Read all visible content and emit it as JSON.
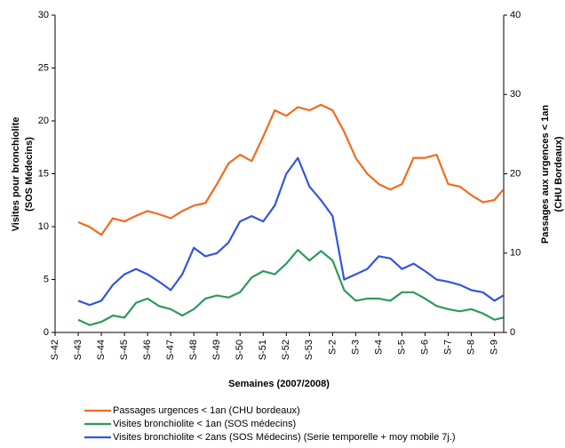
{
  "chart_data": {
    "type": "line",
    "xlabel": "Semaines (2007/2008)",
    "ylabel": [
      "Visites pour bronchiolite",
      "(SOS Médecins)"
    ],
    "y2label": [
      "Passages aux urgences < 1an",
      "(CHU Bordeaux)"
    ],
    "xlim": [
      0,
      19.4
    ],
    "xticks": [
      {
        "value": 0,
        "label": "S-42"
      },
      {
        "value": 1,
        "label": "S-43"
      },
      {
        "value": 2,
        "label": "S-44"
      },
      {
        "value": 3,
        "label": "S-45"
      },
      {
        "value": 4,
        "label": "S-46"
      },
      {
        "value": 5,
        "label": "S-47"
      },
      {
        "value": 6,
        "label": "S-48"
      },
      {
        "value": 7,
        "label": "S-49"
      },
      {
        "value": 8,
        "label": "S-50"
      },
      {
        "value": 9,
        "label": "S-51"
      },
      {
        "value": 10,
        "label": "S-52"
      },
      {
        "value": 11,
        "label": "S-53"
      },
      {
        "value": 12,
        "label": "S-2"
      },
      {
        "value": 13,
        "label": "S-3"
      },
      {
        "value": 14,
        "label": "S-4"
      },
      {
        "value": 15,
        "label": "S-5"
      },
      {
        "value": 16,
        "label": "S-6"
      },
      {
        "value": 17,
        "label": "S-7"
      },
      {
        "value": 18,
        "label": "S-8"
      },
      {
        "value": 19,
        "label": "S-9"
      }
    ],
    "ylim": [
      0,
      30
    ],
    "yticks": [
      0,
      5,
      10,
      15,
      20,
      25,
      30
    ],
    "y2lim": [
      0,
      40
    ],
    "y2ticks": [
      0,
      10,
      20,
      30,
      40
    ],
    "legend": "bottom",
    "x": [
      1,
      1.5,
      2,
      2.5,
      3,
      3.5,
      4,
      4.5,
      5,
      5.5,
      6,
      6.5,
      7,
      7.5,
      8,
      8.5,
      9,
      9.5,
      10,
      10.5,
      11,
      11.5,
      12,
      12.5,
      13,
      13.5,
      14,
      14.5,
      15,
      15.5,
      16,
      16.5,
      17,
      17.5,
      18,
      18.5,
      19,
      19.38
    ],
    "series": [
      {
        "name": "Passages urgences < 1an (CHU bordeaux)",
        "color": "#f26b1d",
        "axis": "y2",
        "values": [
          13.9,
          13.3,
          12.3,
          14.4,
          14,
          14.7,
          15.3,
          14.9,
          14.4,
          15.3,
          16,
          16.3,
          18.7,
          21.3,
          22.4,
          21.6,
          24.7,
          28,
          27.3,
          28.4,
          28,
          28.7,
          28,
          25.3,
          22,
          20,
          18.7,
          18,
          18.7,
          22,
          22,
          22.4,
          18.7,
          18.4,
          17.3,
          16.4,
          16.7,
          18
        ]
      },
      {
        "name": "Visites bronchiolite < 1an (SOS médecins)",
        "color": "#2e9a5c",
        "values": [
          1.2,
          0.7,
          1.0,
          1.6,
          1.4,
          2.8,
          3.2,
          2.5,
          2.2,
          1.6,
          2.2,
          3.2,
          3.5,
          3.3,
          3.8,
          5.2,
          5.8,
          5.5,
          6.5,
          7.8,
          6.8,
          7.7,
          6.8,
          4.0,
          3.0,
          3.2,
          3.2,
          3.0,
          3.8,
          3.8,
          3.2,
          2.5,
          2.2,
          2.0,
          2.2,
          1.8,
          1.2,
          1.4
        ]
      },
      {
        "name": "Visites bronchiolite < 2ans (SOS Médecins) (Serie temporelle + moy mobile 7j.)",
        "color": "#3355dd",
        "values": [
          3.0,
          2.6,
          3.0,
          4.5,
          5.5,
          6.0,
          5.5,
          4.8,
          4.0,
          5.5,
          8.0,
          7.2,
          7.5,
          8.5,
          10.5,
          11.0,
          10.5,
          12.0,
          15.0,
          16.5,
          13.8,
          12.5,
          11.0,
          5.0,
          5.5,
          6.0,
          7.2,
          7.0,
          6.0,
          6.5,
          5.8,
          5.0,
          4.8,
          4.5,
          4.0,
          3.8,
          3.0,
          3.5
        ]
      }
    ]
  }
}
